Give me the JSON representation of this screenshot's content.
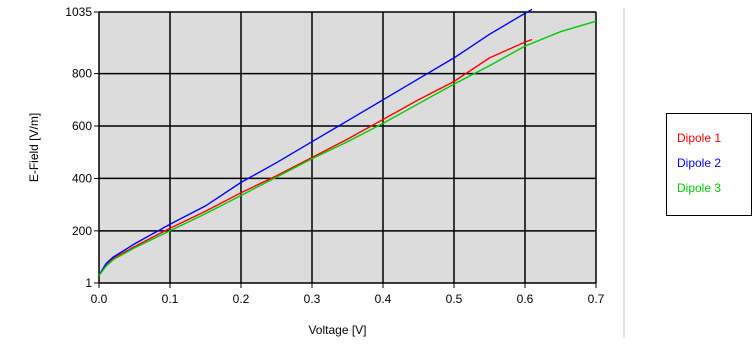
{
  "chart_data": {
    "type": "line",
    "xlabel": "Voltage [V]",
    "ylabel": "E-Field [V/m]",
    "xlim": [
      0,
      0.7
    ],
    "ylim": [
      1,
      1035
    ],
    "x_ticks": [
      "0.0",
      "0.1",
      "0.2",
      "0.3",
      "0.4",
      "0.5",
      "0.6",
      "0.7"
    ],
    "y_ticks": [
      "1",
      "200",
      "400",
      "600",
      "800",
      "1035"
    ],
    "x_tick_values": [
      0,
      0.1,
      0.2,
      0.3,
      0.4,
      0.5,
      0.6,
      0.7
    ],
    "y_tick_values": [
      1,
      200,
      400,
      600,
      800,
      1035
    ],
    "grid": true,
    "legend_position": "right",
    "background": "#dcdcdc",
    "series": [
      {
        "name": "Dipole 1",
        "color": "#ff0000",
        "x": [
          0,
          0.01,
          0.02,
          0.05,
          0.1,
          0.15,
          0.2,
          0.25,
          0.3,
          0.35,
          0.4,
          0.45,
          0.5,
          0.55,
          0.6,
          0.61
        ],
        "y": [
          30,
          70,
          95,
          140,
          210,
          275,
          345,
          410,
          480,
          550,
          625,
          700,
          770,
          860,
          920,
          930
        ]
      },
      {
        "name": "Dipole 2",
        "color": "#0000ff",
        "x": [
          0,
          0.01,
          0.02,
          0.05,
          0.1,
          0.15,
          0.2,
          0.25,
          0.3,
          0.35,
          0.4,
          0.45,
          0.5,
          0.55,
          0.6,
          0.61
        ],
        "y": [
          30,
          75,
          100,
          150,
          225,
          295,
          385,
          460,
          540,
          620,
          700,
          780,
          860,
          950,
          1030,
          1045
        ]
      },
      {
        "name": "Dipole 3",
        "color": "#00cc00",
        "x": [
          0,
          0.01,
          0.02,
          0.05,
          0.1,
          0.15,
          0.2,
          0.25,
          0.3,
          0.35,
          0.4,
          0.45,
          0.5,
          0.55,
          0.6,
          0.65,
          0.7
        ],
        "y": [
          30,
          65,
          90,
          135,
          200,
          265,
          335,
          405,
          475,
          540,
          610,
          685,
          760,
          830,
          905,
          960,
          1000
        ]
      }
    ]
  }
}
